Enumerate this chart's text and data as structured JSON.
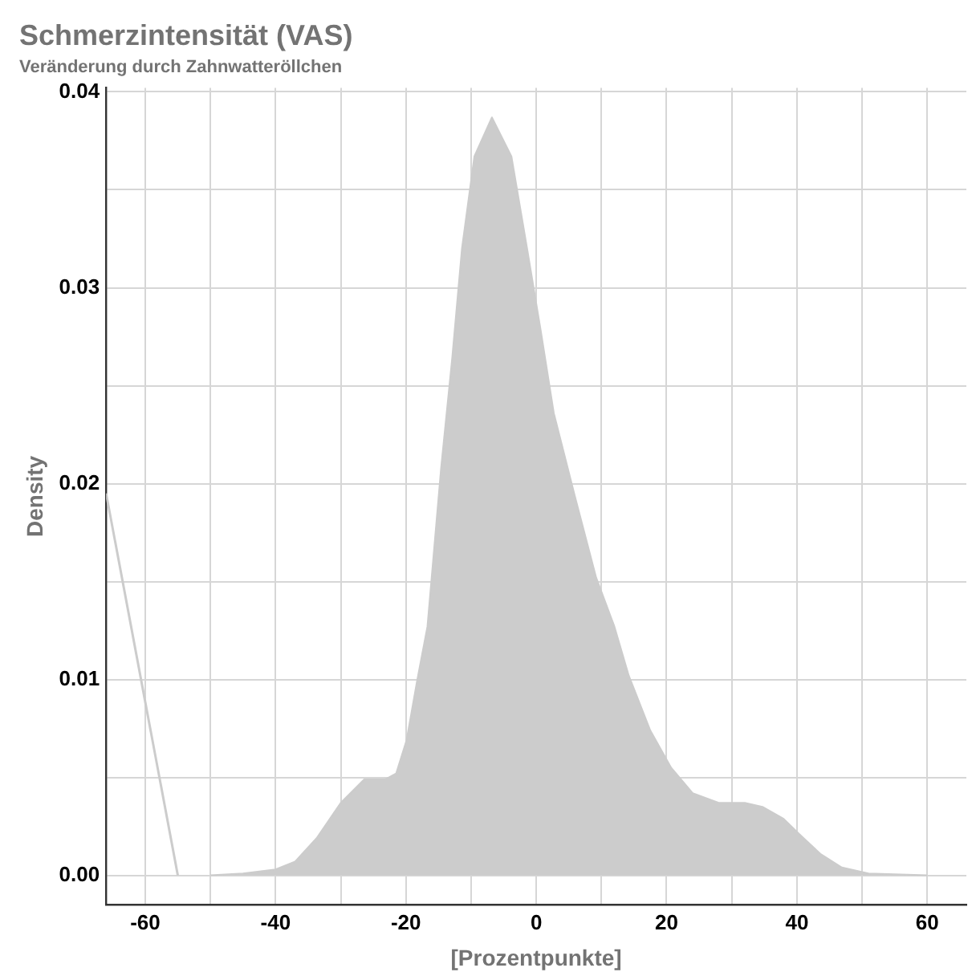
{
  "chart_data": {
    "type": "area",
    "title": "Schmerzintensität (VAS)",
    "subtitle": "Veränderung durch Zahnwatteröllchen",
    "xlabel": "[Prozentpunkte]",
    "ylabel": "Density",
    "xlim": [
      -66,
      66
    ],
    "ylim": [
      -0.0015,
      0.0402
    ],
    "xticks": [
      -60,
      {
        "value": -50,
        "label": null
      },
      -40,
      {
        "value": -30,
        "label": null
      },
      -20,
      {
        "value": -10,
        "label": null
      },
      0,
      {
        "value": 10,
        "label": null
      },
      20,
      {
        "value": 30,
        "label": null
      },
      40,
      {
        "value": 50,
        "label": null
      },
      60
    ],
    "yticks": [
      {
        "value": 0,
        "label": "0.00"
      },
      {
        "value": 0.005,
        "label": null
      },
      {
        "value": 0.01,
        "label": "0.01"
      },
      {
        "value": 0.015,
        "label": null
      },
      {
        "value": 0.02,
        "label": "0.02"
      },
      {
        "value": 0.025,
        "label": null
      },
      {
        "value": 0.03,
        "label": "0.03"
      },
      {
        "value": 0.035,
        "label": null
      },
      {
        "value": 0.04,
        "label": "0.04"
      }
    ],
    "grid": true,
    "legend": false,
    "marker": "none",
    "series": [
      {
        "color": "#cccccc",
        "x": [
          -50,
          -45,
          -40,
          -37,
          -33.7,
          -30,
          -26.4,
          -23.2,
          -21.5,
          -19.9,
          -18.3,
          -16.7,
          -14.6,
          -12.9,
          -11.4,
          -9.5,
          -6.8,
          -3.8,
          -1.4,
          0.7,
          2.7,
          5.9,
          9.2,
          12,
          14.2,
          17.5,
          20.7,
          24,
          28,
          32,
          34.7,
          37.9,
          40.4,
          43.6,
          46.9,
          51,
          60
        ],
        "values": [
          0,
          0.0001,
          0.0003,
          0.0007,
          0.0019,
          0.0037,
          0.0049,
          0.0049,
          0.0052,
          0.0069,
          0.0099,
          0.0127,
          0.0208,
          0.0264,
          0.032,
          0.0367,
          0.0387,
          0.0367,
          0.032,
          0.0278,
          0.0236,
          0.0194,
          0.0152,
          0.0127,
          0.0102,
          0.0074,
          0.0055,
          0.0042,
          0.0037,
          0.0037,
          0.0035,
          0.0029,
          0.0021,
          0.0011,
          0.0004,
          0.0001,
          0
        ]
      },
      {
        "type": "line",
        "color": "#cccccc",
        "x": [
          -66,
          -55
        ],
        "values": [
          0.0195,
          0
        ]
      }
    ]
  }
}
